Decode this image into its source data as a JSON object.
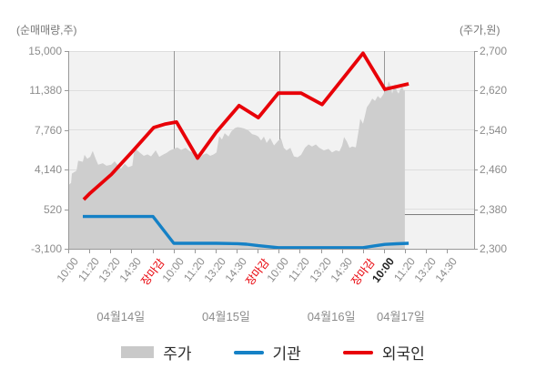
{
  "chart_data": {
    "type": "area",
    "description": "Korean intraday stock chart: price area (right axis, won) with institution and foreigner cumulative net-trading-volume lines (left axis, shares) over 4 trading days",
    "left_axis": {
      "title": "(순매매량,주)",
      "min": -3100,
      "max": 15000,
      "ticks": [
        {
          "value": 15000,
          "label": "15,000"
        },
        {
          "value": 11380,
          "label": "11,380"
        },
        {
          "value": 7760,
          "label": "7,760"
        },
        {
          "value": 4140,
          "label": "4,140"
        },
        {
          "value": 520,
          "label": "520"
        },
        {
          "value": -3100,
          "label": "-3,100"
        }
      ]
    },
    "right_axis": {
      "title": "(주가,원)",
      "min": 2300,
      "max": 2700,
      "ticks": [
        {
          "value": 2700,
          "label": "2,700"
        },
        {
          "value": 2620,
          "label": "2,620"
        },
        {
          "value": 2540,
          "label": "2,540"
        },
        {
          "value": 2460,
          "label": "2,460"
        },
        {
          "value": 2380,
          "label": "2,380"
        },
        {
          "value": 2300,
          "label": "2,300"
        }
      ]
    },
    "x_axis": {
      "tick_labels": [
        {
          "label": "10:00",
          "type": "time"
        },
        {
          "label": "11:20",
          "type": "time"
        },
        {
          "label": "13:20",
          "type": "time"
        },
        {
          "label": "14:30",
          "type": "time"
        },
        {
          "label": "장마감",
          "type": "close"
        },
        {
          "label": "10:00",
          "type": "time"
        },
        {
          "label": "11:20",
          "type": "time"
        },
        {
          "label": "13:20",
          "type": "time"
        },
        {
          "label": "14:30",
          "type": "time"
        },
        {
          "label": "장마감",
          "type": "close"
        },
        {
          "label": "10:00",
          "type": "time"
        },
        {
          "label": "11:20",
          "type": "time"
        },
        {
          "label": "13:20",
          "type": "time"
        },
        {
          "label": "14:30",
          "type": "time"
        },
        {
          "label": "장마감",
          "type": "close"
        },
        {
          "label": "10:00",
          "type": "current"
        },
        {
          "label": "11:20",
          "type": "time"
        },
        {
          "label": "13:20",
          "type": "time"
        },
        {
          "label": "14:30",
          "type": "time"
        }
      ],
      "day_separators_at": [
        5,
        10,
        15
      ],
      "date_labels": [
        {
          "label": "04월14일",
          "pos": 2.5
        },
        {
          "label": "04월15일",
          "pos": 7.5
        },
        {
          "label": "04월16일",
          "pos": 12.5
        },
        {
          "label": "04월17일",
          "pos": 15.8
        }
      ]
    },
    "series": {
      "price": {
        "name": "주가",
        "axis": "right",
        "color": "#cecece",
        "points": [
          [
            0,
            2430
          ],
          [
            0.09,
            2433
          ],
          [
            0.13,
            2452
          ],
          [
            0.35,
            2458
          ],
          [
            0.43,
            2478
          ],
          [
            0.65,
            2476
          ],
          [
            0.73,
            2490
          ],
          [
            0.86,
            2482
          ],
          [
            1,
            2486
          ],
          [
            1.12,
            2498
          ],
          [
            1.25,
            2483
          ],
          [
            1.38,
            2470
          ],
          [
            1.6,
            2473
          ],
          [
            1.77,
            2468
          ],
          [
            2,
            2470
          ],
          [
            2.16,
            2477
          ],
          [
            2.29,
            2470
          ],
          [
            2.46,
            2462
          ],
          [
            2.64,
            2472
          ],
          [
            2.81,
            2465
          ],
          [
            3,
            2468
          ],
          [
            3.11,
            2504
          ],
          [
            3.24,
            2499
          ],
          [
            3.37,
            2494
          ],
          [
            3.55,
            2488
          ],
          [
            3.72,
            2491
          ],
          [
            3.89,
            2487
          ],
          [
            4.11,
            2499
          ],
          [
            4.28,
            2486
          ],
          [
            4.45,
            2490
          ],
          [
            4.63,
            2494
          ],
          [
            4.8,
            2499
          ],
          [
            4.97,
            2502
          ],
          [
            5.14,
            2505
          ],
          [
            5.32,
            2500
          ],
          [
            5.53,
            2504
          ],
          [
            5.71,
            2498
          ],
          [
            5.88,
            2494
          ],
          [
            6.01,
            2484
          ],
          [
            6.18,
            2482
          ],
          [
            6.35,
            2490
          ],
          [
            6.53,
            2493
          ],
          [
            6.7,
            2488
          ],
          [
            6.87,
            2491
          ],
          [
            7,
            2495
          ],
          [
            7.13,
            2528
          ],
          [
            7.26,
            2521
          ],
          [
            7.39,
            2534
          ],
          [
            7.57,
            2527
          ],
          [
            7.7,
            2537
          ],
          [
            7.87,
            2544
          ],
          [
            8,
            2546
          ],
          [
            8.17,
            2545
          ],
          [
            8.34,
            2543
          ],
          [
            8.52,
            2539
          ],
          [
            8.69,
            2532
          ],
          [
            8.86,
            2530
          ],
          [
            8.99,
            2527
          ],
          [
            9.12,
            2519
          ],
          [
            9.25,
            2527
          ],
          [
            9.38,
            2514
          ],
          [
            9.55,
            2524
          ],
          [
            9.73,
            2509
          ],
          [
            9.94,
            2519
          ],
          [
            10.07,
            2523
          ],
          [
            10.2,
            2504
          ],
          [
            10.33,
            2499
          ],
          [
            10.51,
            2504
          ],
          [
            10.68,
            2487
          ],
          [
            10.85,
            2485
          ],
          [
            11.02,
            2490
          ],
          [
            11.2,
            2504
          ],
          [
            11.37,
            2511
          ],
          [
            11.54,
            2507
          ],
          [
            11.72,
            2511
          ],
          [
            11.89,
            2504
          ],
          [
            12.1,
            2499
          ],
          [
            12.32,
            2502
          ],
          [
            12.49,
            2495
          ],
          [
            12.67,
            2499
          ],
          [
            12.84,
            2497
          ],
          [
            12.97,
            2509
          ],
          [
            13.06,
            2526
          ],
          [
            13.19,
            2517
          ],
          [
            13.32,
            2504
          ],
          [
            13.45,
            2507
          ],
          [
            13.62,
            2505
          ],
          [
            13.75,
            2538
          ],
          [
            13.83,
            2563
          ],
          [
            13.96,
            2553
          ],
          [
            14.05,
            2569
          ],
          [
            14.14,
            2586
          ],
          [
            14.27,
            2594
          ],
          [
            14.4,
            2604
          ],
          [
            14.53,
            2599
          ],
          [
            14.66,
            2609
          ],
          [
            14.79,
            2604
          ],
          [
            14.92,
            2612
          ],
          [
            15,
            2619
          ],
          [
            15.09,
            2624
          ],
          [
            15.18,
            2639
          ],
          [
            15.26,
            2631
          ],
          [
            15.35,
            2614
          ],
          [
            15.44,
            2629
          ],
          [
            15.48,
            2633
          ],
          [
            15.57,
            2619
          ],
          [
            15.65,
            2614
          ],
          [
            15.74,
            2624
          ],
          [
            15.83,
            2627
          ],
          [
            15.91,
            2619
          ],
          [
            15.95,
            2622
          ]
        ]
      },
      "institution": {
        "name": "기관",
        "axis": "left",
        "color": "#1581c6",
        "points": [
          [
            0.65,
            -150
          ],
          [
            1,
            -150
          ],
          [
            2,
            -150
          ],
          [
            3,
            -150
          ],
          [
            3.98,
            -150
          ],
          [
            4.97,
            -2600
          ],
          [
            6,
            -2600
          ],
          [
            7,
            -2600
          ],
          [
            8,
            -2630
          ],
          [
            8.43,
            -2680
          ],
          [
            8.99,
            -2820
          ],
          [
            9.94,
            -3000
          ],
          [
            11,
            -3000
          ],
          [
            12,
            -3000
          ],
          [
            13,
            -3000
          ],
          [
            13.96,
            -3000
          ],
          [
            14.48,
            -2840
          ],
          [
            15,
            -2700
          ],
          [
            15.57,
            -2640
          ],
          [
            16.13,
            -2600
          ]
        ]
      },
      "foreigner": {
        "name": "외국인",
        "axis": "left",
        "color": "#e80008",
        "points": [
          [
            0.69,
            1400
          ],
          [
            1,
            2000
          ],
          [
            2,
            3700
          ],
          [
            3,
            5800
          ],
          [
            4.02,
            8000
          ],
          [
            4.54,
            8300
          ],
          [
            5.1,
            8500
          ],
          [
            6.1,
            5200
          ],
          [
            7,
            7600
          ],
          [
            8.07,
            10000
          ],
          [
            8.99,
            8900
          ],
          [
            9.94,
            11150
          ],
          [
            11.02,
            11150
          ],
          [
            12.02,
            10100
          ],
          [
            12.97,
            12400
          ],
          [
            13.96,
            14800
          ],
          [
            15,
            11500
          ],
          [
            15.57,
            11750
          ],
          [
            16.13,
            12000
          ]
        ]
      }
    },
    "colors": {
      "plot_background": "#f2f2f2",
      "gridline": "#dedede",
      "zero_line": "#7d7d7d",
      "day_separator": "#979797",
      "axis_line": "#999999",
      "tick_text": "#8c8c8c",
      "close_label_text": "#e80008",
      "current_label_text": "#222222"
    }
  },
  "legend": [
    {
      "label": "주가",
      "swatch": "area",
      "color": "#c9c9c9"
    },
    {
      "label": "기관",
      "swatch": "line",
      "color": "#1581c6"
    },
    {
      "label": "외국인",
      "swatch": "line",
      "color": "#e80008"
    }
  ]
}
